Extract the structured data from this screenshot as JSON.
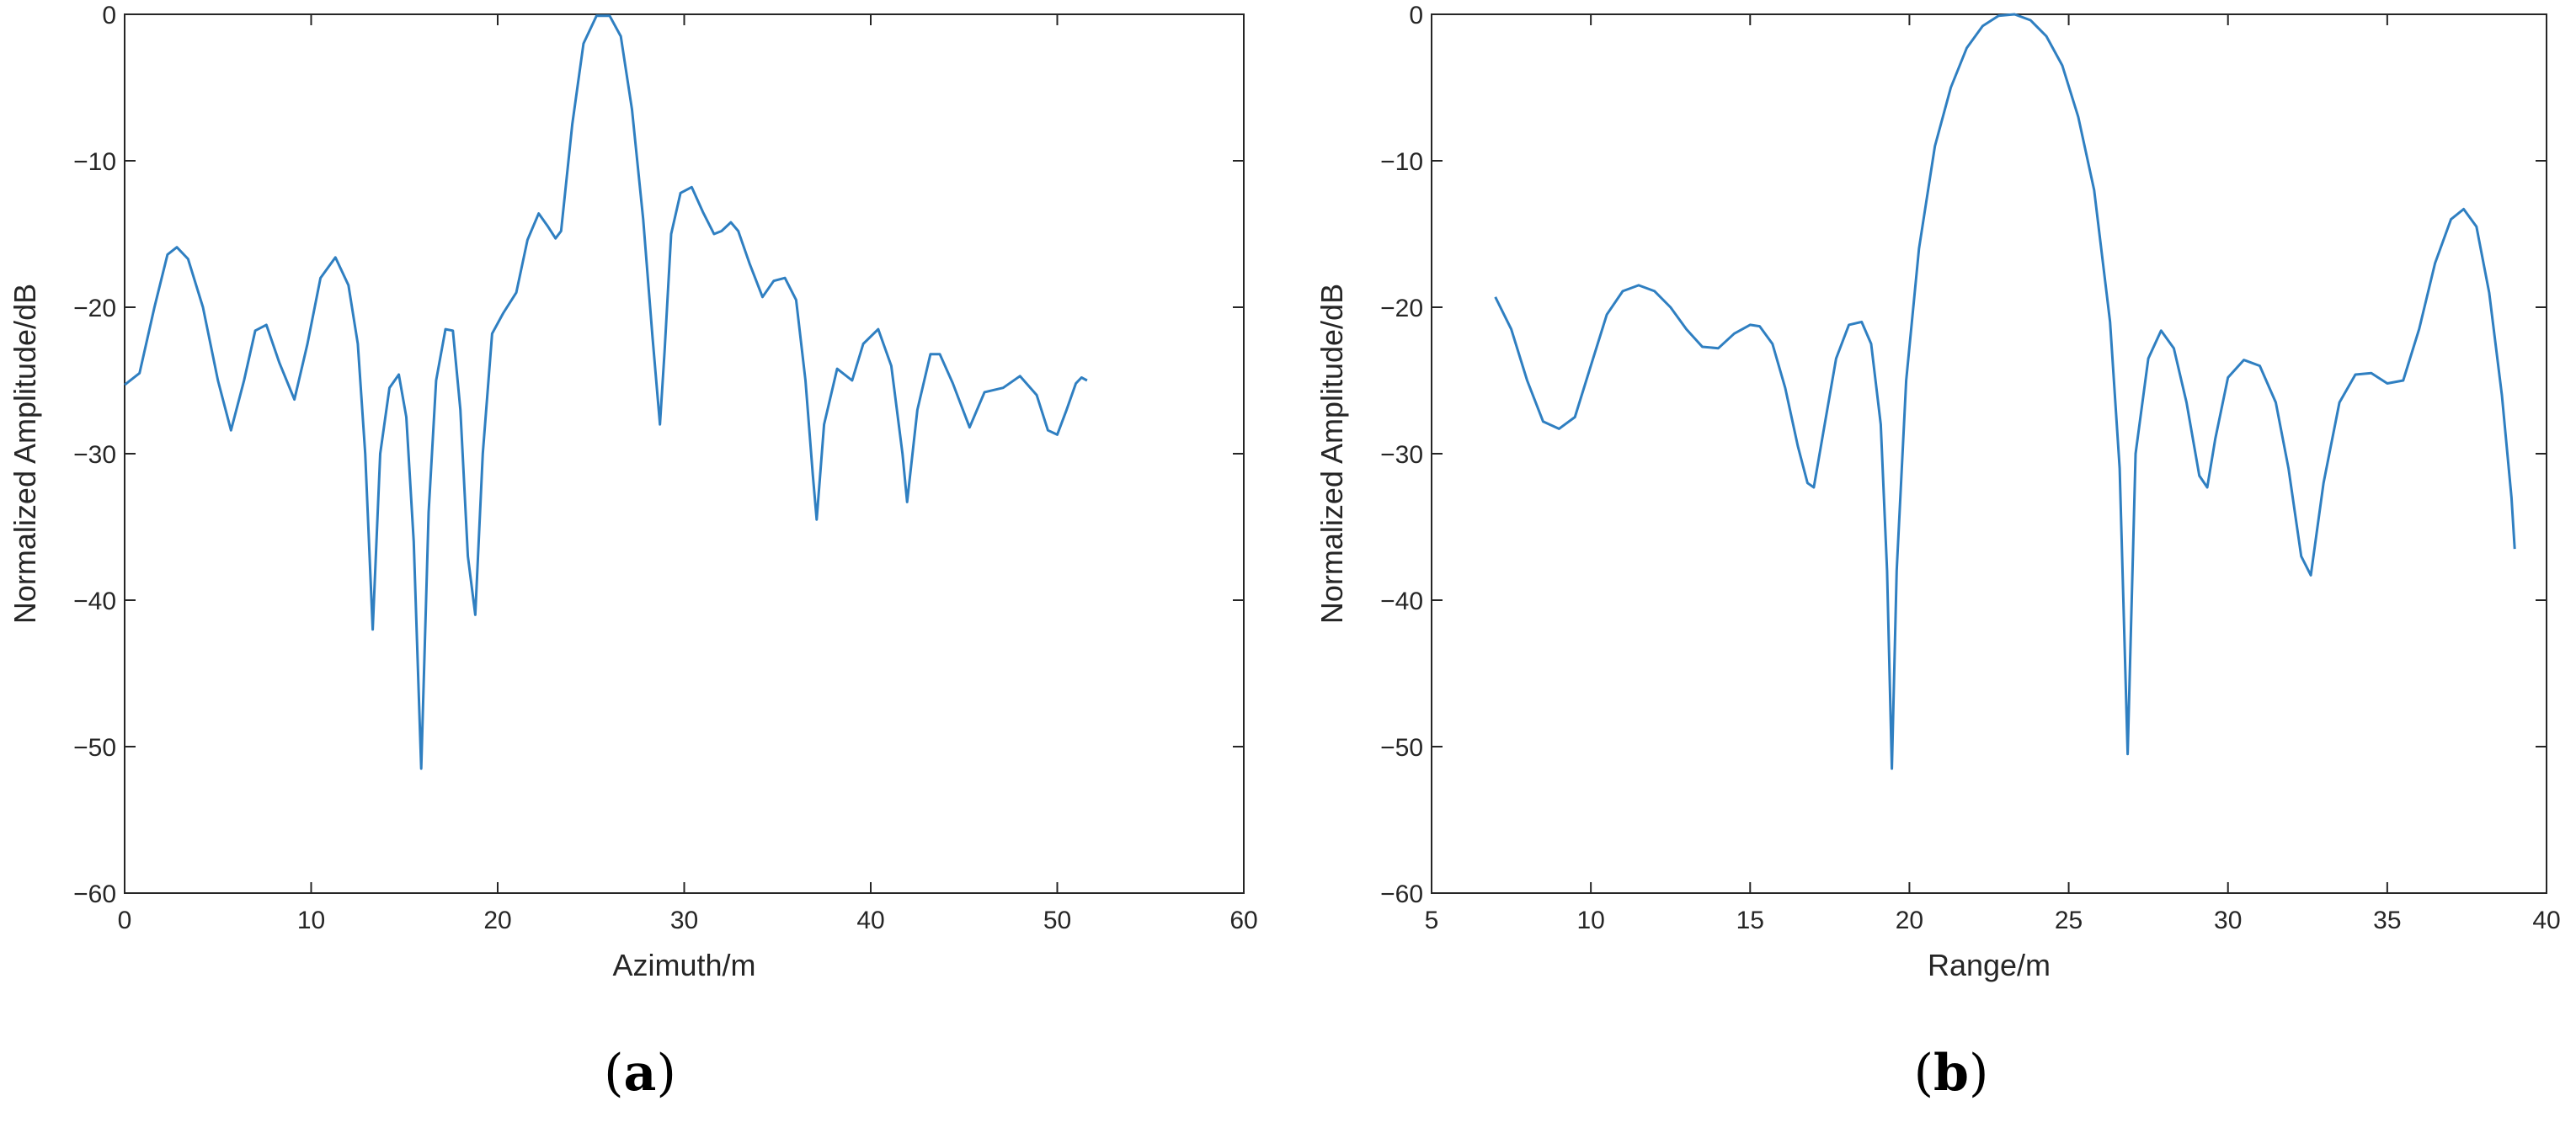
{
  "chart_data": [
    {
      "type": "line",
      "panel_label": "a",
      "xlabel": "Azimuth/m",
      "ylabel": "Normalized Amplitude/dB",
      "xlim": [
        0,
        60
      ],
      "ylim": [
        -60,
        0
      ],
      "xticks": [
        0,
        10,
        20,
        30,
        40,
        50,
        60
      ],
      "yticks": [
        0,
        -10,
        -20,
        -30,
        -40,
        -50,
        -60
      ],
      "grid": false,
      "line_color": "#2f7fc1",
      "x": [
        0,
        0.8,
        1.6,
        2.3,
        2.8,
        3.4,
        4.2,
        5.0,
        5.7,
        6.4,
        7.0,
        7.6,
        8.3,
        9.1,
        9.8,
        10.5,
        11.3,
        12.0,
        12.5,
        12.9,
        13.3,
        13.7,
        14.2,
        14.7,
        15.1,
        15.5,
        15.9,
        16.3,
        16.7,
        17.2,
        17.6,
        18.0,
        18.4,
        18.8,
        19.2,
        19.7,
        20.3,
        21.0,
        21.6,
        22.2,
        22.7,
        23.1,
        23.4,
        24.0,
        24.6,
        25.3,
        26.0,
        26.6,
        27.2,
        27.8,
        28.3,
        28.7,
        28.95,
        29.3,
        29.8,
        30.4,
        31.0,
        31.6,
        32.0,
        32.5,
        32.9,
        33.5,
        34.2,
        34.8,
        35.4,
        36.0,
        36.5,
        36.9,
        37.1,
        37.5,
        38.2,
        39.0,
        39.6,
        40.4,
        41.1,
        41.7,
        41.95,
        42.5,
        43.2,
        43.7,
        44.4,
        45.3,
        46.1,
        47.1,
        48.0,
        48.9,
        49.5,
        50.0,
        50.5,
        51.0,
        51.3,
        51.6
      ],
      "y": [
        -25.3,
        -24.5,
        -20.0,
        -16.4,
        -15.9,
        -16.7,
        -20.0,
        -25.0,
        -28.4,
        -25.0,
        -21.6,
        -21.2,
        -23.8,
        -26.3,
        -22.5,
        -18.0,
        -16.6,
        -18.5,
        -22.5,
        -30.0,
        -42.0,
        -30.0,
        -25.5,
        -24.6,
        -27.5,
        -36.0,
        -51.5,
        -34.0,
        -25.0,
        -21.5,
        -21.6,
        -27.0,
        -37.0,
        -41.0,
        -30.0,
        -21.8,
        -20.4,
        -19.0,
        -15.4,
        -13.6,
        -14.5,
        -15.3,
        -14.8,
        -7.5,
        -2.0,
        -0.1,
        -0.1,
        -1.5,
        -6.5,
        -14.0,
        -22.0,
        -28.0,
        -23.0,
        -15.0,
        -12.2,
        -11.8,
        -13.5,
        -15.0,
        -14.8,
        -14.2,
        -14.8,
        -17.0,
        -19.3,
        -18.2,
        -18.0,
        -19.5,
        -25.0,
        -31.5,
        -34.5,
        -28.0,
        -24.2,
        -25.0,
        -22.5,
        -21.5,
        -24.0,
        -30.0,
        -33.3,
        -27.0,
        -23.2,
        -23.2,
        -25.2,
        -28.2,
        -25.8,
        -25.5,
        -24.7,
        -26.0,
        -28.4,
        -28.7,
        -27.0,
        -25.2,
        -24.8,
        -25.0
      ]
    },
    {
      "type": "line",
      "panel_label": "b",
      "xlabel": "Range/m",
      "ylabel": "Normalized Amplitude/dB",
      "xlim": [
        5,
        40
      ],
      "ylim": [
        -60,
        0
      ],
      "xticks": [
        5,
        10,
        15,
        20,
        25,
        30,
        35,
        40
      ],
      "yticks": [
        0,
        -10,
        -20,
        -30,
        -40,
        -50,
        -60
      ],
      "grid": false,
      "line_color": "#2f7fc1",
      "x": [
        7.0,
        7.5,
        8.0,
        8.5,
        9.0,
        9.5,
        10.0,
        10.5,
        11.0,
        11.5,
        12.0,
        12.5,
        13.0,
        13.5,
        14.0,
        14.5,
        15.0,
        15.3,
        15.7,
        16.1,
        16.5,
        16.8,
        17.0,
        17.3,
        17.7,
        18.1,
        18.5,
        18.8,
        19.1,
        19.3,
        19.45,
        19.6,
        19.9,
        20.3,
        20.8,
        21.3,
        21.8,
        22.3,
        22.8,
        23.3,
        23.8,
        24.3,
        24.8,
        25.3,
        25.8,
        26.3,
        26.6,
        26.85,
        27.1,
        27.5,
        27.9,
        28.3,
        28.7,
        29.1,
        29.35,
        29.6,
        30.0,
        30.5,
        31.0,
        31.5,
        31.9,
        32.3,
        32.6,
        33.0,
        33.5,
        34.0,
        34.5,
        35.0,
        35.5,
        36.0,
        36.5,
        37.0,
        37.4,
        37.8,
        38.2,
        38.6,
        38.9,
        39.0
      ],
      "y": [
        -19.3,
        -21.5,
        -25.0,
        -27.8,
        -28.3,
        -27.5,
        -24.0,
        -20.5,
        -18.9,
        -18.5,
        -18.9,
        -20.0,
        -21.5,
        -22.7,
        -22.8,
        -21.8,
        -21.2,
        -21.3,
        -22.5,
        -25.5,
        -29.5,
        -32.0,
        -32.3,
        -28.5,
        -23.5,
        -21.2,
        -21.0,
        -22.5,
        -28.0,
        -38.0,
        -51.5,
        -38.0,
        -25.0,
        -16.0,
        -9.0,
        -5.0,
        -2.3,
        -0.8,
        -0.1,
        0.0,
        -0.4,
        -1.5,
        -3.5,
        -7.0,
        -12.0,
        -21.0,
        -31.0,
        -50.5,
        -30.0,
        -23.5,
        -21.6,
        -22.8,
        -26.5,
        -31.5,
        -32.3,
        -29.0,
        -24.8,
        -23.6,
        -24.0,
        -26.5,
        -31.0,
        -37.0,
        -38.3,
        -32.0,
        -26.5,
        -24.6,
        -24.5,
        -25.2,
        -25.0,
        -21.5,
        -17.0,
        -14.0,
        -13.3,
        -14.5,
        -19.0,
        -26.0,
        -33.0,
        -36.5
      ]
    }
  ]
}
